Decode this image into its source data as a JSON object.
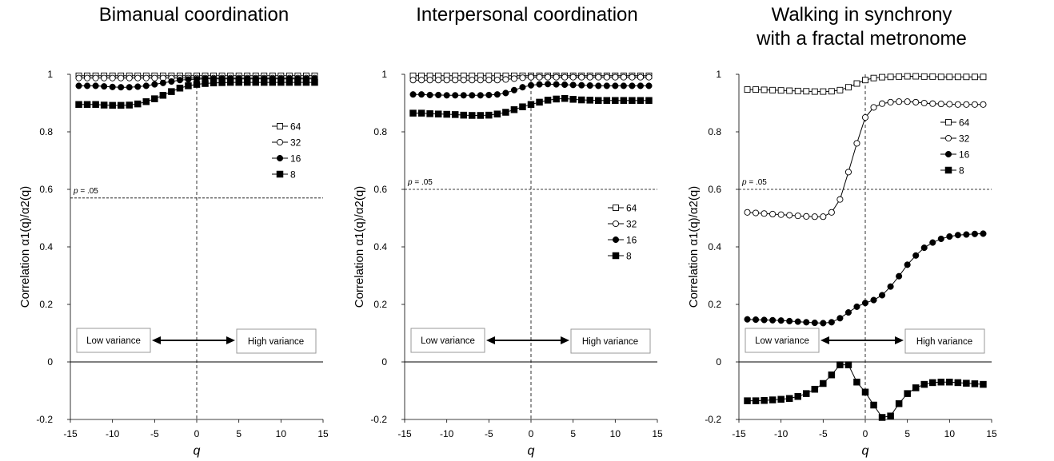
{
  "page": {
    "background": "#ffffff"
  },
  "panels": [
    {
      "title_lines": [
        "Bimanual coordination"
      ],
      "ylabel": "Correlation α1(q)/α2(q)",
      "xlabel": "q",
      "threshold_label": "p = .05",
      "low_label": "Low variance",
      "high_label": "High variance"
    },
    {
      "title_lines": [
        "Interpersonal coordination"
      ],
      "ylabel": "Correlation α1(q)/α2(q)",
      "xlabel": "q",
      "threshold_label": "p = .05",
      "low_label": "Low variance",
      "high_label": "High variance"
    },
    {
      "title_lines": [
        "Walking in synchrony",
        "with a fractal metronome"
      ],
      "ylabel": "Correlation α1(q)/α2(q)",
      "xlabel": "q",
      "threshold_label": "p = .05",
      "low_label": "Low variance",
      "high_label": "High variance"
    }
  ],
  "chart_data": [
    {
      "type": "line",
      "title": "Bimanual coordination",
      "xlabel": "q",
      "ylabel": "Correlation α1(q)/α2(q)",
      "xlim": [
        -15,
        15
      ],
      "ylim": [
        -0.2,
        1
      ],
      "x_ticks": [
        -15,
        -10,
        -5,
        0,
        5,
        10,
        15
      ],
      "y_ticks": [
        -0.2,
        0,
        0.2,
        0.4,
        0.6,
        0.8,
        1
      ],
      "y_tick_labels": [
        "-0.2",
        "0",
        "0.2",
        "0.4",
        "0.6",
        "0.8",
        "1"
      ],
      "x_tick_labels": [
        "-15",
        "-10",
        "-5",
        "0",
        "5",
        "10",
        "15"
      ],
      "threshold": 0.57,
      "threshold_label": "p = .05",
      "legend_position": "right",
      "x": [
        -14,
        -13,
        -12,
        -11,
        -10,
        -9,
        -8,
        -7,
        -6,
        -5,
        -4,
        -3,
        -2,
        -1,
        0,
        1,
        2,
        3,
        4,
        5,
        6,
        7,
        8,
        9,
        10,
        11,
        12,
        13,
        14
      ],
      "series": [
        {
          "name": "64",
          "marker": "open-square",
          "values": [
            0.995,
            0.995,
            0.995,
            0.995,
            0.995,
            0.995,
            0.995,
            0.995,
            0.995,
            0.995,
            0.995,
            0.995,
            0.995,
            0.995,
            0.995,
            0.995,
            0.995,
            0.995,
            0.995,
            0.995,
            0.995,
            0.995,
            0.995,
            0.995,
            0.995,
            0.995,
            0.995,
            0.995,
            0.995
          ]
        },
        {
          "name": "32",
          "marker": "open-circle",
          "values": [
            0.987,
            0.987,
            0.987,
            0.987,
            0.987,
            0.987,
            0.987,
            0.987,
            0.987,
            0.987,
            0.987,
            0.987,
            0.987,
            0.987,
            0.987,
            0.987,
            0.987,
            0.987,
            0.987,
            0.987,
            0.987,
            0.987,
            0.987,
            0.987,
            0.987,
            0.987,
            0.987,
            0.987,
            0.987
          ]
        },
        {
          "name": "16",
          "marker": "filled-circle",
          "values": [
            0.96,
            0.96,
            0.96,
            0.958,
            0.956,
            0.955,
            0.955,
            0.957,
            0.96,
            0.965,
            0.97,
            0.975,
            0.98,
            0.982,
            0.983,
            0.984,
            0.984,
            0.984,
            0.984,
            0.984,
            0.984,
            0.984,
            0.984,
            0.984,
            0.984,
            0.984,
            0.984,
            0.984,
            0.984
          ]
        },
        {
          "name": "8",
          "marker": "filled-square",
          "values": [
            0.895,
            0.895,
            0.895,
            0.893,
            0.892,
            0.892,
            0.893,
            0.897,
            0.905,
            0.915,
            0.927,
            0.94,
            0.952,
            0.96,
            0.965,
            0.968,
            0.97,
            0.971,
            0.972,
            0.972,
            0.972,
            0.972,
            0.972,
            0.972,
            0.972,
            0.972,
            0.972,
            0.972,
            0.972
          ]
        }
      ]
    },
    {
      "type": "line",
      "title": "Interpersonal coordination",
      "xlabel": "q",
      "ylabel": "Correlation α1(q)/α2(q)",
      "xlim": [
        -15,
        15
      ],
      "ylim": [
        -0.2,
        1
      ],
      "x_ticks": [
        -15,
        -10,
        -5,
        0,
        5,
        10,
        15
      ],
      "y_ticks": [
        -0.2,
        0,
        0.2,
        0.4,
        0.6,
        0.8,
        1
      ],
      "y_tick_labels": [
        "-0.2",
        "0",
        "0.2",
        "0.4",
        "0.6",
        "0.8",
        "1"
      ],
      "x_tick_labels": [
        "-15",
        "-10",
        "-5",
        "0",
        "5",
        "10",
        "15"
      ],
      "threshold": 0.6,
      "threshold_label": "p = .05",
      "legend_position": "right",
      "x": [
        -14,
        -13,
        -12,
        -11,
        -10,
        -9,
        -8,
        -7,
        -6,
        -5,
        -4,
        -3,
        -2,
        -1,
        0,
        1,
        2,
        3,
        4,
        5,
        6,
        7,
        8,
        9,
        10,
        11,
        12,
        13,
        14
      ],
      "series": [
        {
          "name": "64",
          "marker": "open-square",
          "values": [
            0.995,
            0.995,
            0.995,
            0.995,
            0.995,
            0.995,
            0.995,
            0.995,
            0.995,
            0.995,
            0.995,
            0.995,
            0.995,
            0.995,
            0.995,
            0.995,
            0.995,
            0.995,
            0.995,
            0.995,
            0.995,
            0.995,
            0.995,
            0.995,
            0.995,
            0.995,
            0.995,
            0.995,
            0.995
          ]
        },
        {
          "name": "32",
          "marker": "open-circle",
          "values": [
            0.98,
            0.98,
            0.98,
            0.98,
            0.98,
            0.98,
            0.98,
            0.98,
            0.98,
            0.98,
            0.98,
            0.982,
            0.985,
            0.988,
            0.99,
            0.99,
            0.99,
            0.99,
            0.99,
            0.99,
            0.99,
            0.99,
            0.99,
            0.99,
            0.99,
            0.99,
            0.99,
            0.99,
            0.99
          ]
        },
        {
          "name": "16",
          "marker": "filled-circle",
          "values": [
            0.93,
            0.93,
            0.928,
            0.928,
            0.927,
            0.927,
            0.927,
            0.927,
            0.927,
            0.928,
            0.93,
            0.935,
            0.945,
            0.955,
            0.962,
            0.965,
            0.966,
            0.965,
            0.964,
            0.963,
            0.962,
            0.961,
            0.96,
            0.96,
            0.96,
            0.96,
            0.96,
            0.96,
            0.96
          ]
        },
        {
          "name": "8",
          "marker": "filled-square",
          "values": [
            0.865,
            0.865,
            0.863,
            0.862,
            0.861,
            0.86,
            0.858,
            0.857,
            0.857,
            0.858,
            0.862,
            0.868,
            0.877,
            0.887,
            0.895,
            0.903,
            0.91,
            0.914,
            0.916,
            0.913,
            0.911,
            0.91,
            0.909,
            0.909,
            0.909,
            0.909,
            0.909,
            0.909,
            0.909
          ]
        }
      ]
    },
    {
      "type": "line",
      "title": "Walking in synchrony with a fractal metronome",
      "xlabel": "q",
      "ylabel": "Correlation α1(q)/α2(q)",
      "xlim": [
        -15,
        15
      ],
      "ylim": [
        -0.2,
        1
      ],
      "x_ticks": [
        -15,
        -10,
        -5,
        0,
        5,
        10,
        15
      ],
      "y_ticks": [
        -0.2,
        0,
        0.2,
        0.4,
        0.6,
        0.8,
        1
      ],
      "y_tick_labels": [
        "-0.2",
        "0",
        "0.2",
        "0.4",
        "0.6",
        "0.8",
        "1"
      ],
      "x_tick_labels": [
        "-15",
        "-10",
        "-5",
        "0",
        "5",
        "10",
        "15"
      ],
      "threshold": 0.6,
      "threshold_label": "p = .05",
      "legend_position": "right",
      "x": [
        -14,
        -13,
        -12,
        -11,
        -10,
        -9,
        -8,
        -7,
        -6,
        -5,
        -4,
        -3,
        -2,
        -1,
        0,
        1,
        2,
        3,
        4,
        5,
        6,
        7,
        8,
        9,
        10,
        11,
        12,
        13,
        14
      ],
      "series": [
        {
          "name": "64",
          "marker": "open-square",
          "values": [
            0.947,
            0.947,
            0.946,
            0.945,
            0.944,
            0.943,
            0.942,
            0.941,
            0.94,
            0.94,
            0.941,
            0.945,
            0.955,
            0.968,
            0.98,
            0.987,
            0.99,
            0.991,
            0.992,
            0.993,
            0.993,
            0.992,
            0.992,
            0.991,
            0.991,
            0.991,
            0.991,
            0.991,
            0.991
          ]
        },
        {
          "name": "32",
          "marker": "open-circle",
          "values": [
            0.52,
            0.518,
            0.516,
            0.514,
            0.512,
            0.51,
            0.508,
            0.506,
            0.505,
            0.505,
            0.52,
            0.565,
            0.66,
            0.76,
            0.85,
            0.885,
            0.898,
            0.903,
            0.905,
            0.905,
            0.903,
            0.9,
            0.898,
            0.897,
            0.896,
            0.895,
            0.895,
            0.895,
            0.895
          ]
        },
        {
          "name": "16",
          "marker": "filled-circle",
          "values": [
            0.148,
            0.147,
            0.146,
            0.145,
            0.144,
            0.142,
            0.14,
            0.138,
            0.136,
            0.135,
            0.138,
            0.152,
            0.172,
            0.192,
            0.205,
            0.215,
            0.232,
            0.262,
            0.298,
            0.338,
            0.37,
            0.397,
            0.415,
            0.428,
            0.436,
            0.441,
            0.443,
            0.445,
            0.446
          ]
        },
        {
          "name": "8",
          "marker": "filled-square",
          "values": [
            -0.135,
            -0.135,
            -0.134,
            -0.132,
            -0.13,
            -0.127,
            -0.12,
            -0.11,
            -0.095,
            -0.075,
            -0.045,
            -0.01,
            -0.01,
            -0.07,
            -0.105,
            -0.15,
            -0.193,
            -0.188,
            -0.145,
            -0.11,
            -0.09,
            -0.078,
            -0.072,
            -0.07,
            -0.07,
            -0.072,
            -0.074,
            -0.076,
            -0.078
          ]
        }
      ]
    }
  ]
}
